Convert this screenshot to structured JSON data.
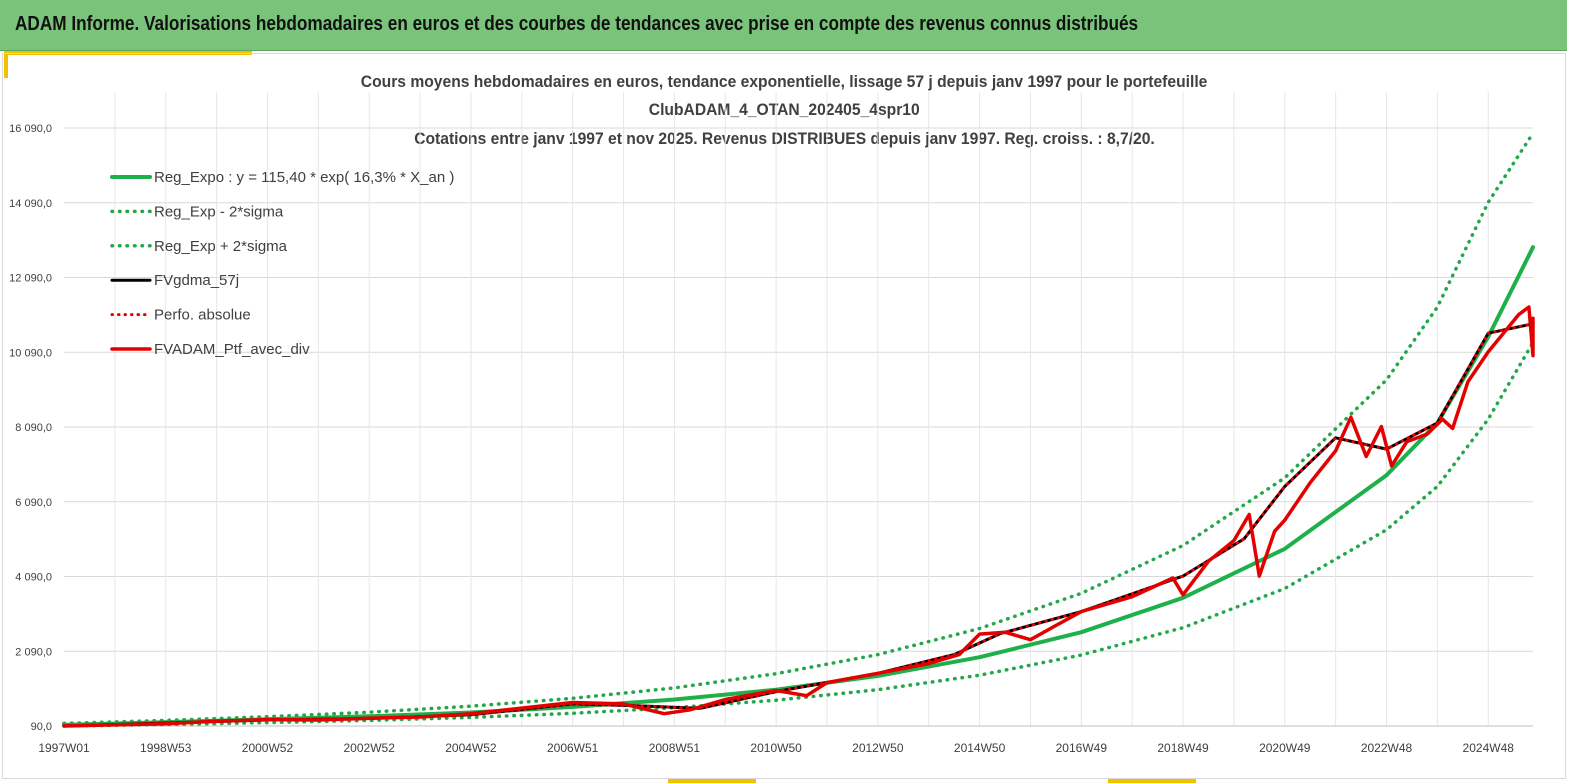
{
  "banner": {
    "title": "ADAM Informe. Valorisations hebdomadaires en euros et des courbes de tendances avec prise en compte des revenus connus distribués"
  },
  "colors": {
    "banner_bg": "#7ac37a",
    "accent": "#f2c200",
    "trend_green": "#1db04b",
    "dotted_green": "#22a84a",
    "smoothed_black": "#000000",
    "portfolio_red": "#e30000"
  },
  "chart_data": {
    "type": "line",
    "title": [
      "Cours moyens hebdomadaires  en euros, tendance exponentielle, lissage 57 j depuis janv 1997 pour le portefeuille",
      "ClubADAM_4_OTAN_202405_4spr10",
      "Cotations entre janv 1997 et nov 2025. Revenus DISTRIBUES depuis janv 1997. Reg. croiss. : 8,7/20."
    ],
    "xlabel": "",
    "ylabel": "",
    "ylim": [
      90,
      16090
    ],
    "xlim": [
      1997.0,
      2025.88
    ],
    "grid": true,
    "legend_position": "top-left",
    "x_ticks": [
      {
        "x": 1997.0,
        "label": "1997W01"
      },
      {
        "x": 1999.0,
        "label": "1998W53"
      },
      {
        "x": 2001.0,
        "label": "2000W52"
      },
      {
        "x": 2003.0,
        "label": "2002W52"
      },
      {
        "x": 2005.0,
        "label": "2004W52"
      },
      {
        "x": 2007.0,
        "label": "2006W51"
      },
      {
        "x": 2009.0,
        "label": "2008W51"
      },
      {
        "x": 2011.0,
        "label": "2010W50"
      },
      {
        "x": 2013.0,
        "label": "2012W50"
      },
      {
        "x": 2015.0,
        "label": "2014W50"
      },
      {
        "x": 2017.0,
        "label": "2016W49"
      },
      {
        "x": 2019.0,
        "label": "2018W49"
      },
      {
        "x": 2021.0,
        "label": "2020W49"
      },
      {
        "x": 2023.0,
        "label": "2022W48"
      },
      {
        "x": 2025.0,
        "label": "2024W48"
      }
    ],
    "y_ticks": [
      {
        "y": 90,
        "label": "90,0"
      },
      {
        "y": 2090,
        "label": "2 090,0"
      },
      {
        "y": 4090,
        "label": "4 090,0"
      },
      {
        "y": 6090,
        "label": "6 090,0"
      },
      {
        "y": 8090,
        "label": "8 090,0"
      },
      {
        "y": 10090,
        "label": "10 090,0"
      },
      {
        "y": 12090,
        "label": "12 090,0"
      },
      {
        "y": 14090,
        "label": "14 090,0"
      },
      {
        "y": 16090,
        "label": "16 090,0"
      }
    ],
    "series": [
      {
        "name": "Reg_Expo : y = 115,40 * exp( 16,3% *  X_an )",
        "style": "solid-green",
        "points": [
          [
            1997.0,
            120
          ],
          [
            1999.0,
            190
          ],
          [
            2001.0,
            270
          ],
          [
            2003.0,
            350
          ],
          [
            2005.0,
            450
          ],
          [
            2007.0,
            600
          ],
          [
            2009.0,
            800
          ],
          [
            2011.0,
            1060
          ],
          [
            2013.0,
            1430
          ],
          [
            2015.0,
            1930
          ],
          [
            2017.0,
            2600
          ],
          [
            2019.0,
            3520
          ],
          [
            2021.0,
            4830
          ],
          [
            2023.0,
            6800
          ],
          [
            2024.0,
            8200
          ],
          [
            2025.0,
            10500
          ],
          [
            2025.88,
            12900
          ]
        ]
      },
      {
        "name": "Reg_Exp - 2*sigma",
        "style": "dotted-green",
        "points": [
          [
            1997.0,
            90
          ],
          [
            1999.0,
            130
          ],
          [
            2001.0,
            180
          ],
          [
            2003.0,
            240
          ],
          [
            2005.0,
            320
          ],
          [
            2007.0,
            430
          ],
          [
            2009.0,
            580
          ],
          [
            2011.0,
            780
          ],
          [
            2013.0,
            1060
          ],
          [
            2015.0,
            1450
          ],
          [
            2017.0,
            1990
          ],
          [
            2019.0,
            2720
          ],
          [
            2021.0,
            3770
          ],
          [
            2023.0,
            5340
          ],
          [
            2024.0,
            6500
          ],
          [
            2025.0,
            8300
          ],
          [
            2025.88,
            10350
          ]
        ]
      },
      {
        "name": "Reg_Exp + 2*sigma",
        "style": "dotted-green",
        "points": [
          [
            1997.0,
            160
          ],
          [
            1999.0,
            240
          ],
          [
            2001.0,
            340
          ],
          [
            2003.0,
            460
          ],
          [
            2005.0,
            620
          ],
          [
            2007.0,
            830
          ],
          [
            2009.0,
            1110
          ],
          [
            2011.0,
            1490
          ],
          [
            2013.0,
            2000
          ],
          [
            2015.0,
            2700
          ],
          [
            2017.0,
            3640
          ],
          [
            2019.0,
            4920
          ],
          [
            2021.0,
            6730
          ],
          [
            2023.0,
            9350
          ],
          [
            2024.0,
            11300
          ],
          [
            2025.0,
            14100
          ],
          [
            2025.88,
            15950
          ]
        ]
      },
      {
        "name": "FVgdma_57j",
        "style": "solid-black",
        "points": [
          [
            1997.0,
            90
          ],
          [
            1999.0,
            170
          ],
          [
            2001.0,
            250
          ],
          [
            2003.0,
            290
          ],
          [
            2005.0,
            390
          ],
          [
            2007.0,
            680
          ],
          [
            2008.5,
            620
          ],
          [
            2009.5,
            560
          ],
          [
            2011.0,
            1010
          ],
          [
            2013.0,
            1500
          ],
          [
            2014.5,
            2000
          ],
          [
            2015.4,
            2560
          ],
          [
            2017.0,
            3150
          ],
          [
            2019.0,
            4100
          ],
          [
            2020.2,
            5100
          ],
          [
            2021.0,
            6500
          ],
          [
            2022.0,
            7800
          ],
          [
            2023.0,
            7500
          ],
          [
            2024.0,
            8200
          ],
          [
            2025.0,
            10600
          ],
          [
            2025.88,
            10850
          ]
        ]
      },
      {
        "name": "Perfo. absolue",
        "style": "dotted-red",
        "points": [
          [
            1997.0,
            90
          ],
          [
            1999.0,
            170
          ],
          [
            2001.0,
            250
          ],
          [
            2003.0,
            290
          ],
          [
            2005.0,
            390
          ],
          [
            2007.0,
            680
          ],
          [
            2008.5,
            620
          ],
          [
            2009.5,
            560
          ],
          [
            2011.0,
            1010
          ],
          [
            2013.0,
            1500
          ],
          [
            2014.5,
            2000
          ],
          [
            2015.4,
            2560
          ],
          [
            2017.0,
            3150
          ],
          [
            2019.0,
            4100
          ],
          [
            2020.2,
            5100
          ],
          [
            2021.0,
            6500
          ],
          [
            2022.0,
            7800
          ],
          [
            2023.0,
            7500
          ],
          [
            2024.0,
            8200
          ],
          [
            2025.0,
            10600
          ],
          [
            2025.88,
            10850
          ]
        ]
      },
      {
        "name": "FVADAM_Ptf_avec_div",
        "style": "solid-red",
        "points": [
          [
            1997.0,
            90
          ],
          [
            1998.0,
            120
          ],
          [
            1999.0,
            150
          ],
          [
            2000.0,
            220
          ],
          [
            2001.0,
            260
          ],
          [
            2002.0,
            250
          ],
          [
            2003.0,
            300
          ],
          [
            2004.0,
            330
          ],
          [
            2005.0,
            420
          ],
          [
            2006.0,
            570
          ],
          [
            2007.0,
            720
          ],
          [
            2008.0,
            680
          ],
          [
            2008.8,
            420
          ],
          [
            2009.3,
            520
          ],
          [
            2010.0,
            800
          ],
          [
            2011.0,
            1040
          ],
          [
            2011.6,
            900
          ],
          [
            2012.0,
            1250
          ],
          [
            2013.0,
            1500
          ],
          [
            2014.0,
            1760
          ],
          [
            2014.6,
            2000
          ],
          [
            2015.0,
            2550
          ],
          [
            2015.5,
            2600
          ],
          [
            2016.0,
            2400
          ],
          [
            2016.5,
            2780
          ],
          [
            2017.0,
            3150
          ],
          [
            2018.0,
            3550
          ],
          [
            2018.8,
            4050
          ],
          [
            2019.0,
            3600
          ],
          [
            2019.5,
            4500
          ],
          [
            2020.0,
            5050
          ],
          [
            2020.3,
            5750
          ],
          [
            2020.5,
            4100
          ],
          [
            2020.8,
            5300
          ],
          [
            2021.0,
            5600
          ],
          [
            2021.5,
            6600
          ],
          [
            2022.0,
            7450
          ],
          [
            2022.3,
            8350
          ],
          [
            2022.6,
            7300
          ],
          [
            2022.9,
            8100
          ],
          [
            2023.1,
            7050
          ],
          [
            2023.4,
            7700
          ],
          [
            2023.8,
            7900
          ],
          [
            2024.1,
            8300
          ],
          [
            2024.3,
            8050
          ],
          [
            2024.6,
            9300
          ],
          [
            2025.0,
            10100
          ],
          [
            2025.3,
            10600
          ],
          [
            2025.6,
            11100
          ],
          [
            2025.8,
            11300
          ],
          [
            2025.9,
            10000
          ],
          [
            2026.1,
            10700
          ],
          [
            2026.5,
            11000
          ],
          [
            2027.0,
            10850
          ]
        ]
      }
    ]
  }
}
